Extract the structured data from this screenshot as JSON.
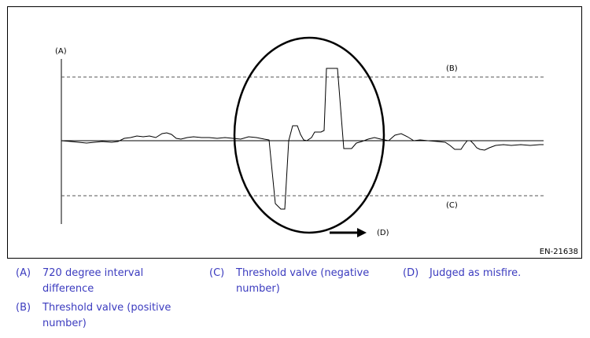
{
  "figure": {
    "labels": {
      "a": "(A)",
      "b": "(B)",
      "c": "(C)",
      "d": "(D)"
    },
    "code": "EN-21638"
  },
  "legend": [
    {
      "key": "(A)",
      "text": "720 degree interval difference"
    },
    {
      "key": "(B)",
      "text": "Threshold valve (positive number)"
    },
    {
      "key": "(C)",
      "text": "Threshold valve (negative number)"
    },
    {
      "key": "(D)",
      "text": "Judged as misfire."
    }
  ],
  "colors": {
    "legend_text": "#3b3bbf",
    "lines": "#000000"
  }
}
